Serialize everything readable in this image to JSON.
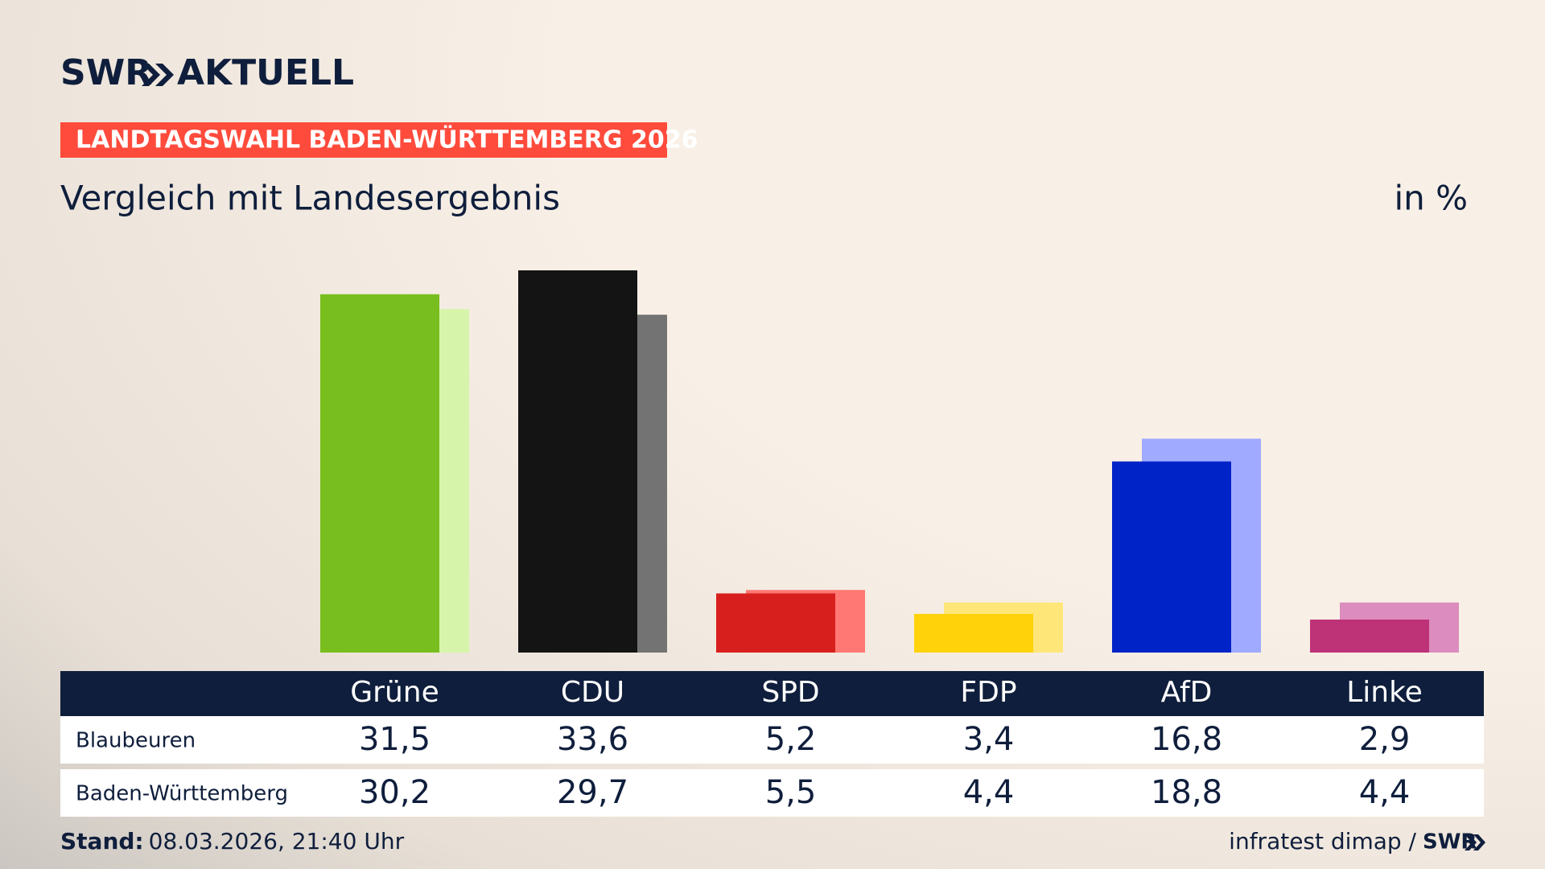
{
  "chart_data": {
    "type": "bar",
    "logo": "SWR",
    "logo_sub": "AKTUELL",
    "banner": "LANDTAGSWAHL BADEN-WÜRTTEMBERG 2026",
    "title": "Vergleich mit Landesergebnis",
    "unit": "in %",
    "categories": [
      "Grüne",
      "CDU",
      "SPD",
      "FDP",
      "AfD",
      "Linke"
    ],
    "series": [
      {
        "name": "Blaubeuren",
        "colors": [
          "#78be1e",
          "#141414",
          "#d7201e",
          "#ffd20a",
          "#0023c8",
          "#be3278"
        ],
        "values": [
          31.5,
          33.6,
          5.2,
          3.4,
          16.8,
          2.9
        ],
        "value_labels": [
          "31,5",
          "33,6",
          "5,2",
          "3,4",
          "16,8",
          "2,9"
        ]
      },
      {
        "name": "Baden-Württemberg",
        "colors": [
          "#d7f5aa",
          "#737373",
          "#ff7873",
          "#ffe678",
          "#a0aaff",
          "#dc8cbe"
        ],
        "values": [
          30.2,
          29.7,
          5.5,
          4.4,
          18.8,
          4.4
        ],
        "value_labels": [
          "30,2",
          "29,7",
          "5,5",
          "4,4",
          "18,8",
          "4,4"
        ]
      }
    ],
    "footer_label": "Stand:",
    "footer_date": "08.03.2026, 21:40 Uhr",
    "source": "infratest dimap /"
  }
}
